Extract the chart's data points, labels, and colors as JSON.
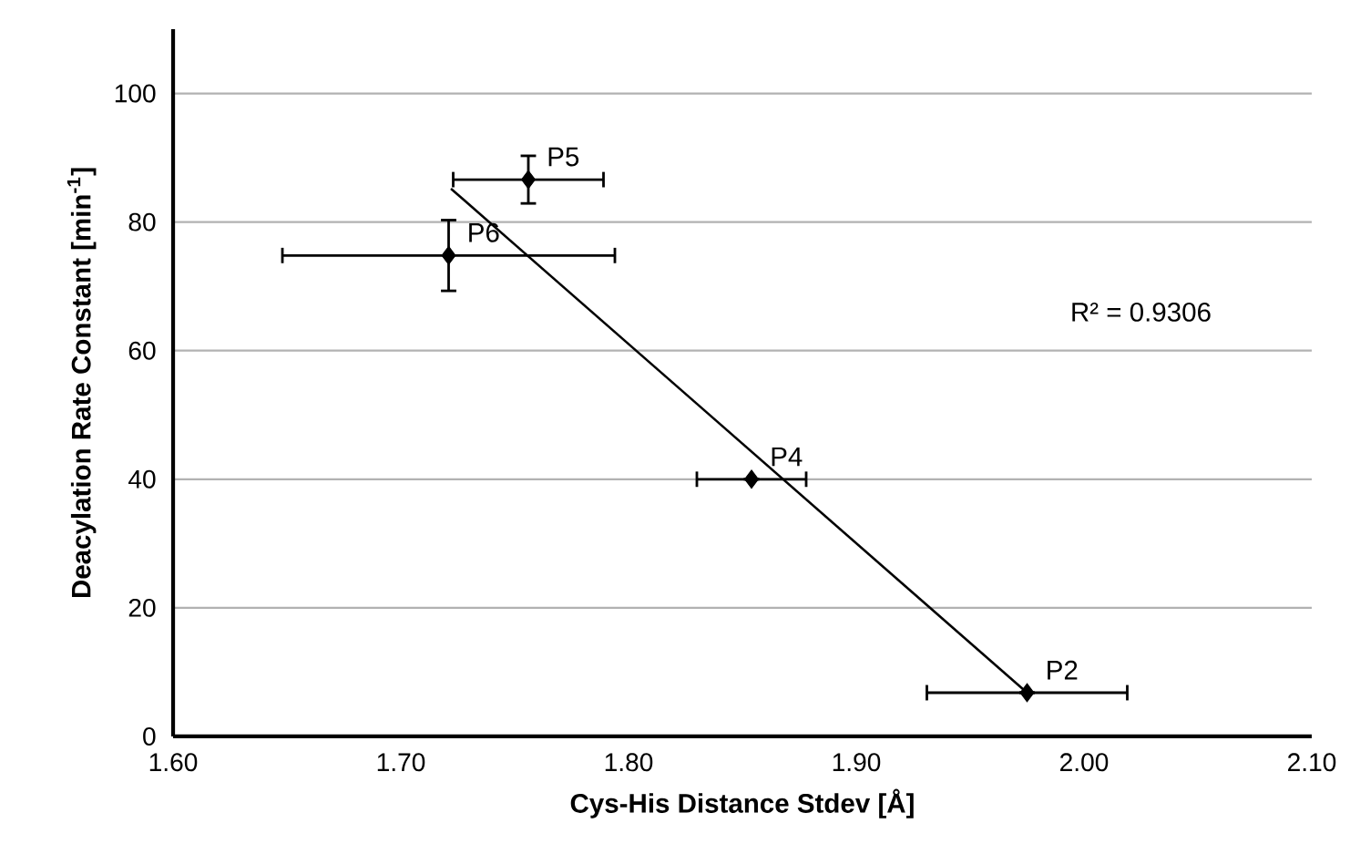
{
  "chart_data": {
    "type": "scatter",
    "xlabel": "Cys-His Distance Stdev [Å]",
    "ylabel": "Deacylation Rate Constant [min$^{-1}$]",
    "xlim": [
      1.6,
      2.1
    ],
    "xticks": [
      {
        "value": 1.6,
        "label": "1.60"
      },
      {
        "value": 1.7,
        "label": "1.70"
      },
      {
        "value": 1.8,
        "label": "1.80"
      },
      {
        "value": 1.9,
        "label": "1.90"
      },
      {
        "value": 2.0,
        "label": "2.00"
      },
      {
        "value": 2.1,
        "label": "2.10"
      }
    ],
    "ylim": [
      0,
      110
    ],
    "yticks": [
      0,
      20,
      40,
      60,
      80,
      100
    ],
    "grid": "y",
    "series": [
      {
        "color": "#000000",
        "marker": "diamond",
        "x": [
          1.721,
          1.756,
          1.854,
          1.975
        ],
        "values": [
          74.8,
          86.6,
          40,
          6.8
        ],
        "errors": [
          5.5,
          3.7,
          null,
          null
        ],
        "xerrors": [
          0.073,
          0.033,
          0.024,
          0.044
        ]
      },
      {
        "type": "line",
        "color": "#000000",
        "marker": "none",
        "line_style": "solid",
        "x": [
          1.722,
          1.975
        ],
        "values": [
          85.2,
          6.8
        ]
      }
    ],
    "annotations": [
      {
        "text": "P6",
        "x": 1.721,
        "y": 74.8
      },
      {
        "text": "P5",
        "x": 1.756,
        "y": 86.6
      },
      {
        "text": "P4",
        "x": 1.854,
        "y": 40
      },
      {
        "text": "P2",
        "x": 1.975,
        "y": 6.8
      },
      "R² = 0.9306"
    ]
  }
}
